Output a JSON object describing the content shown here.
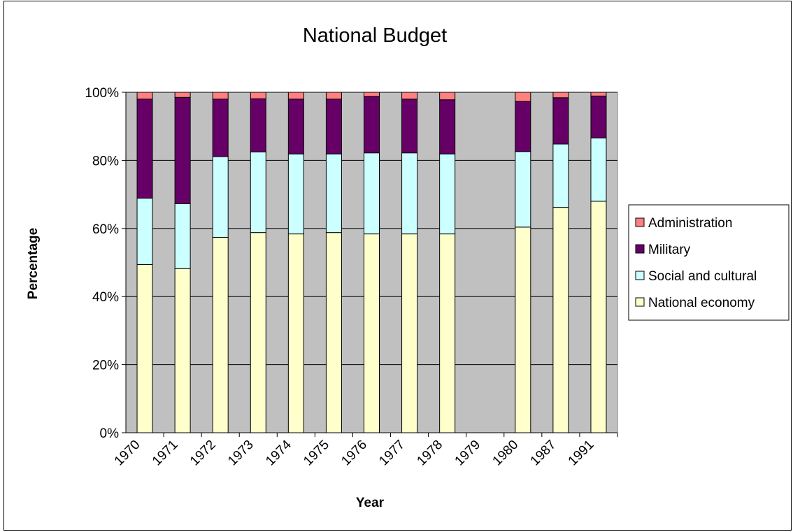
{
  "chart_data": {
    "type": "bar",
    "stacked": true,
    "percent_stacked": true,
    "title": "National Budget",
    "xlabel": "Year",
    "ylabel": "Percentage",
    "ylim": [
      0,
      100
    ],
    "y_ticks": [
      "0%",
      "20%",
      "40%",
      "60%",
      "80%",
      "100%"
    ],
    "grid": "horizontal",
    "legend_position": "right",
    "plot_background": "#c0c0c0",
    "categories": [
      "1970",
      "1971",
      "1972",
      "1973",
      "1974",
      "1975",
      "1976",
      "1977",
      "1978",
      "1979",
      "1980",
      "1987",
      "1991"
    ],
    "series": [
      {
        "name": "National economy",
        "color": "#ffffcc",
        "values": [
          49.4,
          48.2,
          57.4,
          58.8,
          58.4,
          58.8,
          58.4,
          58.4,
          58.4,
          null,
          60.4,
          66.2,
          68.0
        ]
      },
      {
        "name": "Social and cultural",
        "color": "#ccffff",
        "values": [
          19.5,
          19.1,
          23.7,
          23.7,
          23.5,
          23.1,
          23.8,
          23.8,
          23.5,
          null,
          22.2,
          18.6,
          18.6
        ]
      },
      {
        "name": "Military",
        "color": "#660066",
        "values": [
          29.1,
          31.2,
          16.9,
          15.6,
          16.1,
          16.1,
          16.6,
          15.8,
          15.9,
          null,
          14.7,
          13.6,
          12.3
        ]
      },
      {
        "name": "Administration",
        "color": "#ff8080",
        "values": [
          2.0,
          1.5,
          2.0,
          1.9,
          2.0,
          2.0,
          1.2,
          2.0,
          2.2,
          null,
          2.7,
          1.6,
          1.1
        ]
      }
    ]
  }
}
